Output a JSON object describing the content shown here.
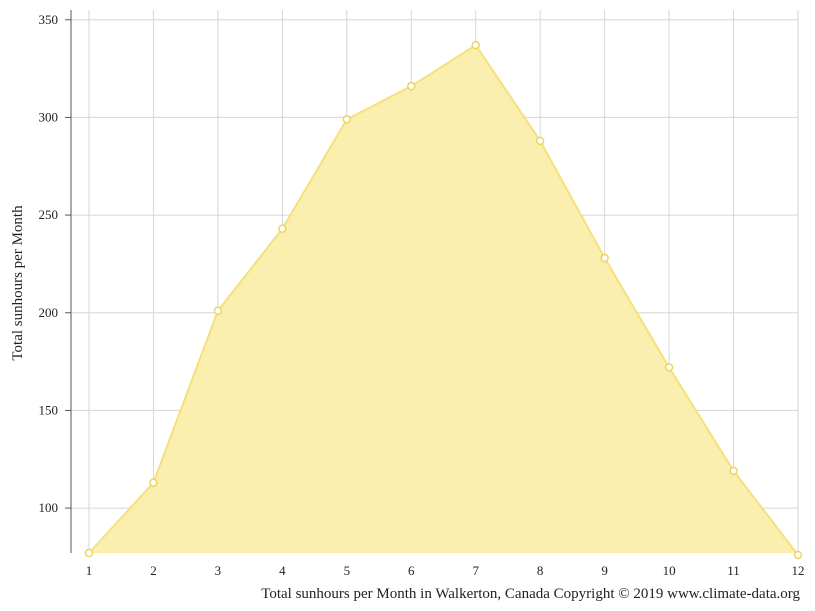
{
  "chart_data": {
    "type": "area",
    "title": "",
    "caption": "Total sunhours per Month in Walkerton, Canada Copyright © 2019 www.climate-data.org",
    "xlabel": "",
    "ylabel": "Total sunhours per Month",
    "x": [
      1,
      2,
      3,
      4,
      5,
      6,
      7,
      8,
      9,
      10,
      11,
      12
    ],
    "x_tick_labels": [
      "1",
      "2",
      "3",
      "4",
      "5",
      "6",
      "7",
      "8",
      "9",
      "10",
      "11",
      "12"
    ],
    "y_ticks": [
      100,
      150,
      200,
      250,
      300,
      350
    ],
    "y_tick_labels": [
      "100",
      "150",
      "200",
      "250",
      "300",
      "350"
    ],
    "ylim": [
      77,
      355
    ],
    "xlim": [
      1,
      12
    ],
    "grid": true,
    "legend": "none",
    "series": [
      {
        "values": [
          77,
          113,
          201,
          243,
          299,
          316,
          337,
          288,
          228,
          172,
          119,
          76
        ]
      }
    ],
    "colors": {
      "fill": "#faeeaa",
      "line": "#f5e07a",
      "marker_fill": "#ffffff",
      "marker_stroke": "#ecd560",
      "grid": "#d6d6d6",
      "axis": "#555555"
    }
  }
}
